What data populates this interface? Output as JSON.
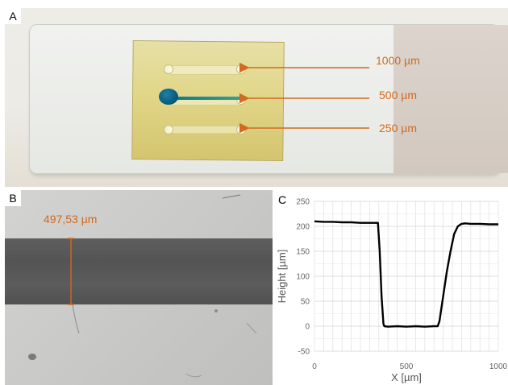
{
  "panels": {
    "a": {
      "letter": "A",
      "labels": [
        "1000 µm",
        "500 µm",
        "250 µm"
      ]
    },
    "b": {
      "letter": "B",
      "measurement": "497,53 µm"
    },
    "c": {
      "letter": "C"
    }
  },
  "colors": {
    "annotation": "#d2691e",
    "dye": "#075d80"
  },
  "chart_data": {
    "type": "line",
    "xlabel": "X [µm]",
    "ylabel": "Height [µm]",
    "xlim": [
      0,
      1000
    ],
    "ylim": [
      -50,
      250
    ],
    "x_ticks": [
      0,
      500,
      1000
    ],
    "y_ticks": [
      -50,
      0,
      50,
      100,
      150,
      200,
      250
    ],
    "grid": true,
    "series": [
      {
        "x": [
          0,
          50,
          100,
          150,
          200,
          250,
          300,
          345,
          355,
          365,
          375,
          380,
          400,
          450,
          500,
          550,
          600,
          650,
          670,
          680,
          700,
          720,
          740,
          760,
          780,
          800,
          820,
          850,
          900,
          950,
          1000
        ],
        "y": [
          210,
          209,
          209,
          208,
          208,
          207,
          207,
          207,
          150,
          60,
          5,
          0,
          -1,
          0,
          -1,
          0,
          -1,
          0,
          0,
          10,
          60,
          110,
          150,
          185,
          200,
          205,
          206,
          205,
          205,
          204,
          204
        ]
      }
    ]
  }
}
